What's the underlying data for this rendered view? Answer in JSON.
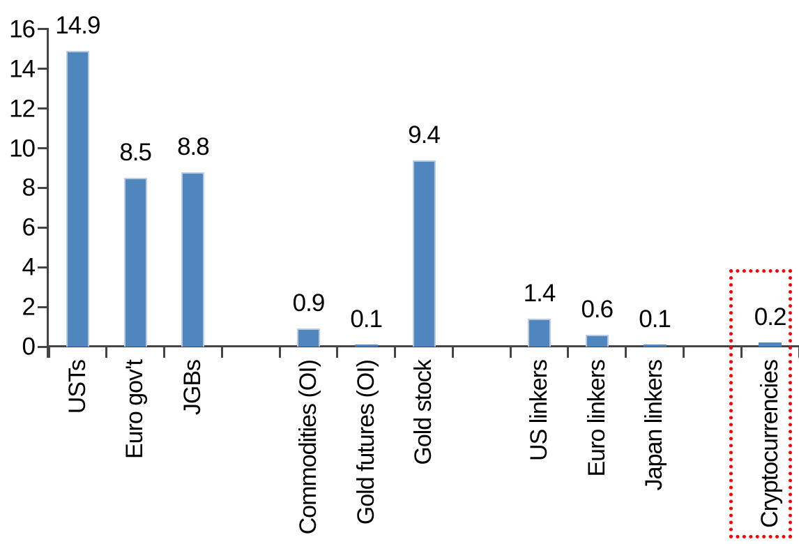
{
  "chart_data": {
    "type": "bar",
    "title": "",
    "xlabel": "",
    "ylabel": "",
    "categories": [
      "USTs",
      "Euro gov't",
      "JGBs",
      "Commodities (OI)",
      "Gold futures (OI)",
      "Gold stock",
      "US linkers",
      "Euro linkers",
      "Japan linkers",
      "Cryptocurrencies"
    ],
    "values": [
      14.9,
      8.5,
      8.8,
      0.9,
      0.1,
      9.4,
      1.4,
      0.6,
      0.1,
      0.2
    ],
    "value_labels": [
      "14.9",
      "8.5",
      "8.8",
      "0.9",
      "0.1",
      "9.4",
      "1.4",
      "0.6",
      "0.1",
      "0.2"
    ],
    "ylim": [
      0,
      16
    ],
    "yticks": [
      0,
      2,
      4,
      6,
      8,
      10,
      12,
      14,
      16
    ],
    "ytick_labels": [
      "0",
      "2",
      "4",
      "6",
      "8",
      "10",
      "12",
      "14",
      "16"
    ],
    "grid": false,
    "legend": "none",
    "layout": {
      "slot_index": [
        0,
        1,
        2,
        4,
        5,
        6,
        8,
        9,
        10,
        12
      ],
      "total_slots": 13,
      "category_label_rotation": "90deg-bottom-to-top"
    },
    "colors": {
      "bar_fill": "#4E86BD",
      "bar_edge": "#B7CBE1",
      "axis": "#444444",
      "text": "#000000",
      "highlight_box": "#FF0000"
    },
    "highlight": {
      "category": "Cryptocurrencies",
      "style": "dotted-rectangle",
      "color": "#FF0000"
    }
  }
}
